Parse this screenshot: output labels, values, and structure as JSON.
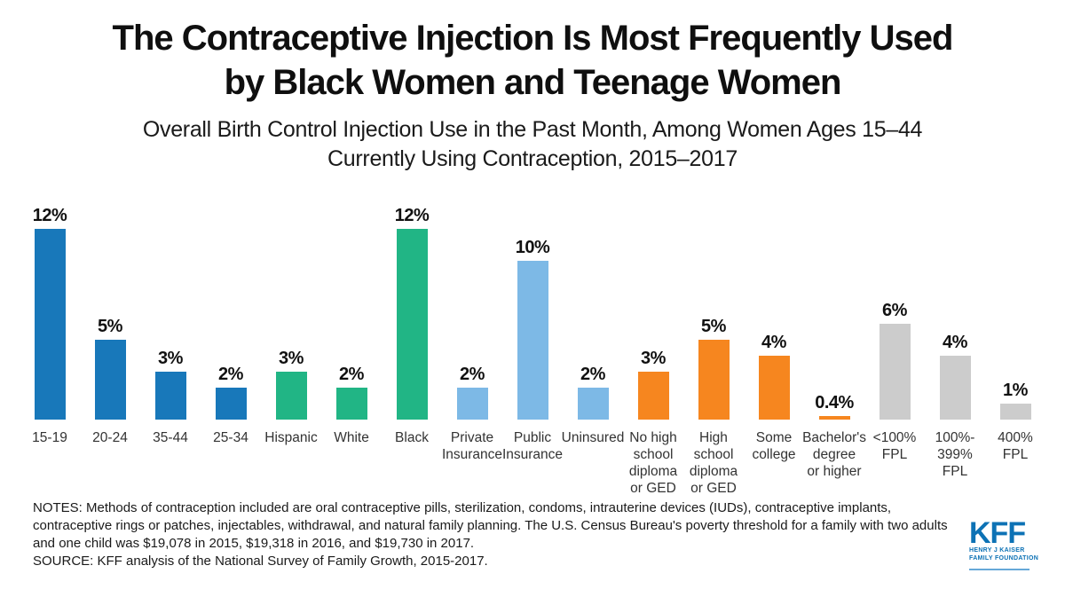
{
  "header": {
    "title_line1": "The Contraceptive Injection Is Most Frequently Used",
    "title_line2": "by Black Women and Teenage Women",
    "subtitle_line1": "Overall Birth Control Injection Use in the Past Month, Among Women Ages 15–44",
    "subtitle_line2": "Currently Using Contraception, 2015–2017"
  },
  "chart_data": {
    "type": "bar",
    "title": "The Contraceptive Injection Is Most Frequently Used by Black Women and Teenage Women",
    "subtitle": "Overall Birth Control Injection Use in the Past Month, Among Women Ages 15–44 Currently Using Contraception, 2015–2017",
    "unit": "percent",
    "ylim": [
      0,
      12
    ],
    "grid": false,
    "axis_line": false,
    "value_labels_shown": true,
    "legend": "none (color-coded by demographic group)",
    "categories": [
      "15-19",
      "20-24",
      "35-44",
      "25-34",
      "Hispanic",
      "White",
      "Black",
      "Private Insurance",
      "Public Insurance",
      "Uninsured",
      "No high school diploma or GED",
      "High school diploma or GED",
      "Some college",
      "Bachelor's degree or higher",
      "<100% FPL",
      "100%-399% FPL",
      "400% FPL"
    ],
    "values": [
      12,
      5,
      3,
      2,
      3,
      2,
      12,
      2,
      10,
      2,
      3,
      5,
      4,
      0.4,
      6,
      4,
      1
    ],
    "group_colors": {
      "age": "#1878ba",
      "race_ethnicity": "#21b585",
      "insurance": "#7db9e6",
      "education": "#f6861f",
      "poverty_level": "#cccccc"
    },
    "bars": [
      {
        "label": "15-19",
        "lines": "15-19",
        "value": 12,
        "display": "12%",
        "group": "age"
      },
      {
        "label": "20-24",
        "lines": "20-24",
        "value": 5,
        "display": "5%",
        "group": "age"
      },
      {
        "label": "35-44",
        "lines": "35-44",
        "value": 3,
        "display": "3%",
        "group": "age"
      },
      {
        "label": "25-34",
        "lines": "25-34",
        "value": 2,
        "display": "2%",
        "group": "age"
      },
      {
        "label": "Hispanic",
        "lines": "Hispanic",
        "value": 3,
        "display": "3%",
        "group": "race_ethnicity"
      },
      {
        "label": "White",
        "lines": "White",
        "value": 2,
        "display": "2%",
        "group": "race_ethnicity"
      },
      {
        "label": "Black",
        "lines": "Black",
        "value": 12,
        "display": "12%",
        "group": "race_ethnicity"
      },
      {
        "label": "Private Insurance",
        "lines": "Private\nInsurance",
        "value": 2,
        "display": "2%",
        "group": "insurance"
      },
      {
        "label": "Public Insurance",
        "lines": "Public\nInsurance",
        "value": 10,
        "display": "10%",
        "group": "insurance"
      },
      {
        "label": "Uninsured",
        "lines": "Uninsured",
        "value": 2,
        "display": "2%",
        "group": "insurance"
      },
      {
        "label": "No high school diploma or GED",
        "lines": "No high\nschool\ndiploma\nor GED",
        "value": 3,
        "display": "3%",
        "group": "education"
      },
      {
        "label": "High school diploma or GED",
        "lines": "High\nschool\ndiploma\nor GED",
        "value": 5,
        "display": "5%",
        "group": "education"
      },
      {
        "label": "Some college",
        "lines": "Some\ncollege",
        "value": 4,
        "display": "4%",
        "group": "education"
      },
      {
        "label": "Bachelor's degree or higher",
        "lines": "Bachelor's\ndegree\nor higher",
        "value": 0.4,
        "display": "0.4%",
        "group": "education"
      },
      {
        "label": "<100% FPL",
        "lines": "<100%\nFPL",
        "value": 6,
        "display": "6%",
        "group": "poverty_level"
      },
      {
        "label": "100%-399% FPL",
        "lines": "100%-\n399%\nFPL",
        "value": 4,
        "display": "4%",
        "group": "poverty_level"
      },
      {
        "label": "400% FPL",
        "lines": "400%\nFPL",
        "value": 1,
        "display": "1%",
        "group": "poverty_level"
      }
    ]
  },
  "notes": {
    "notes_text": "NOTES: Methods of contraception included are oral contraceptive pills, sterilization, condoms, intrauterine devices (IUDs), contraceptive implants, contraceptive rings or patches, injectables, withdrawal, and natural family planning. The U.S. Census Bureau's poverty threshold for a family with two adults and one child was $19,078 in 2015, $19,318 in 2016, and $19,730 in 2017.",
    "source_text": "SOURCE: KFF analysis of the National Survey of Family Growth, 2015-2017."
  },
  "logo": {
    "acronym": "KFF",
    "line1": "HENRY J KAISER",
    "line2": "FAMILY FOUNDATION",
    "brand_color": "#0d72b5"
  }
}
